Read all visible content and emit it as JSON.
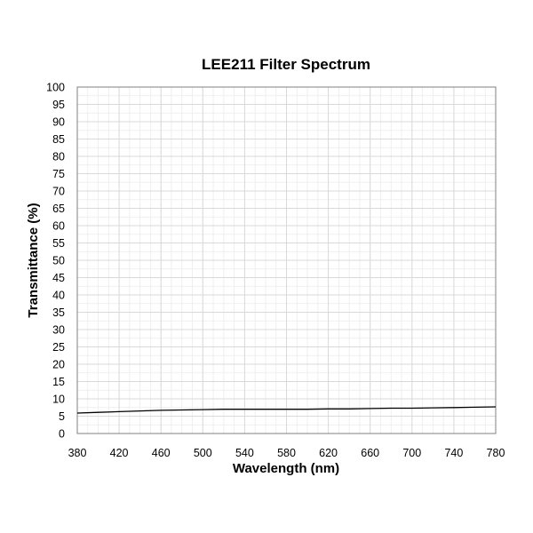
{
  "chart_data": {
    "type": "line",
    "title": "LEE211 Filter Spectrum",
    "xlabel": "Wavelength (nm)",
    "ylabel": "Transmittance (%)",
    "xlim": [
      380,
      780
    ],
    "ylim": [
      0,
      100
    ],
    "x_ticks": [
      380,
      420,
      460,
      500,
      540,
      580,
      620,
      660,
      700,
      740,
      780
    ],
    "y_ticks": [
      0,
      5,
      10,
      15,
      20,
      25,
      30,
      35,
      40,
      45,
      50,
      55,
      60,
      65,
      70,
      75,
      80,
      85,
      90,
      95,
      100
    ],
    "x_minor_step": 10,
    "y_minor_step": 2.5,
    "grid": true,
    "legend": "none",
    "line_color": "#000000",
    "grid_color": "#d9d9d9",
    "series": [
      {
        "x": [
          380,
          400,
          420,
          440,
          460,
          480,
          500,
          520,
          540,
          560,
          580,
          600,
          620,
          640,
          660,
          680,
          700,
          720,
          740,
          760,
          780
        ],
        "values": [
          5.9,
          6.1,
          6.3,
          6.5,
          6.7,
          6.8,
          6.9,
          7.0,
          7.0,
          7.0,
          7.0,
          7.0,
          7.1,
          7.1,
          7.2,
          7.3,
          7.3,
          7.4,
          7.5,
          7.6,
          7.7
        ]
      }
    ]
  }
}
